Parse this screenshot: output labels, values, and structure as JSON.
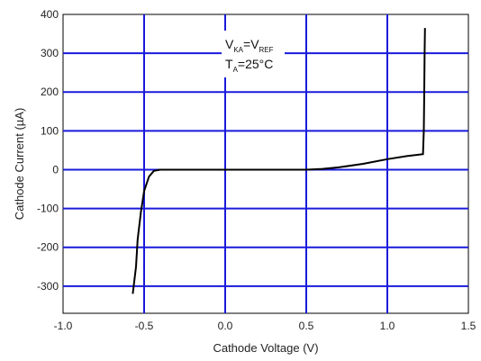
{
  "chart_data": {
    "type": "line",
    "xlabel": "Cathode Voltage (V)",
    "ylabel": "Cathode Current (µA)",
    "xlim": [
      -1.0,
      1.5
    ],
    "ylim": [
      -370,
      400
    ],
    "x_ticks": [
      "-1.0",
      "-0.5",
      "0.0",
      "0.5",
      "1.0",
      "1.5"
    ],
    "y_ticks": [
      "400",
      "300",
      "200",
      "100",
      "0",
      "-100",
      "-200",
      "-300"
    ],
    "grid": true,
    "grid_color": "#1a1adc",
    "line_color": "#000000",
    "annotation": {
      "line1_main": "V",
      "line1_sub": "KA",
      "line1_mid": "=V",
      "line1_sub2": "REF",
      "line2_main": "T",
      "line2_sub": "A",
      "line2_rest": "=25°C"
    },
    "series": [
      {
        "points": [
          [
            -0.57,
            -320
          ],
          [
            -0.55,
            -250
          ],
          [
            -0.54,
            -180
          ],
          [
            -0.52,
            -110
          ],
          [
            -0.5,
            -55
          ],
          [
            -0.47,
            -18
          ],
          [
            -0.44,
            -3
          ],
          [
            -0.4,
            0
          ],
          [
            0.0,
            0
          ],
          [
            0.5,
            0
          ],
          [
            0.6,
            2
          ],
          [
            0.7,
            6
          ],
          [
            0.85,
            15
          ],
          [
            1.0,
            27
          ],
          [
            1.12,
            35
          ],
          [
            1.22,
            40
          ],
          [
            1.225,
            100
          ],
          [
            1.228,
            200
          ],
          [
            1.23,
            300
          ],
          [
            1.232,
            365
          ]
        ]
      }
    ]
  }
}
